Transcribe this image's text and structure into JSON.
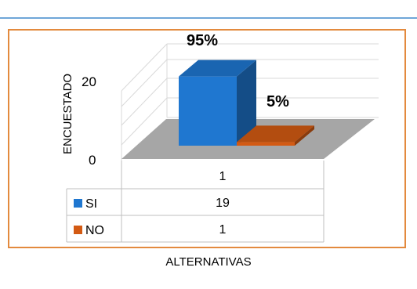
{
  "chart_data": {
    "type": "bar",
    "title": "",
    "categories": [
      "1"
    ],
    "series": [
      {
        "name": "SI",
        "values": [
          19
        ],
        "data_label": "95%",
        "color": "#1f77d0"
      },
      {
        "name": "NO",
        "values": [
          1
        ],
        "data_label": "5%",
        "color": "#d35a13"
      }
    ],
    "ylabel": "ENCUESTADO",
    "xlabel": "ALTERNATIVAS",
    "ylim": [
      0,
      20
    ],
    "yticks": [
      "0",
      "20"
    ],
    "legend_placement": "data-table",
    "grid": true
  }
}
